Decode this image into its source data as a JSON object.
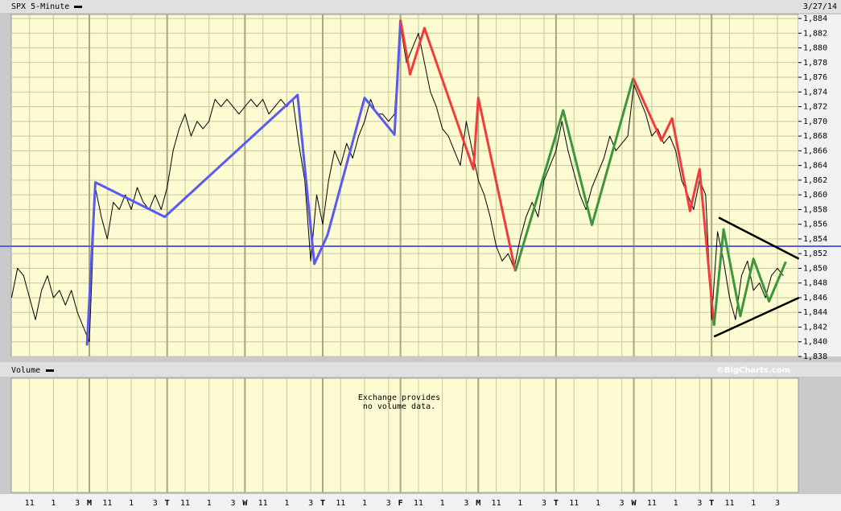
{
  "chart_data": {
    "type": "line",
    "title": "SPX 5-Minute",
    "date": "3/27/14",
    "volume_title": "Volume",
    "credit": "©BigCharts.com",
    "volume_note": [
      "Exchange provides",
      "no volume data."
    ],
    "xlim": [
      0,
      65.75
    ],
    "ylim": [
      1838,
      1884
    ],
    "grid": true,
    "hlines": [
      {
        "value": 1853,
        "color": "#5a5af0"
      }
    ],
    "xticks": [
      {
        "value": 1.5,
        "label": "11"
      },
      {
        "value": 3.5,
        "label": "1"
      },
      {
        "value": 5.5,
        "label": "3"
      },
      {
        "value": 6.5,
        "label": "M"
      },
      {
        "value": 8,
        "label": "11"
      },
      {
        "value": 10,
        "label": "1"
      },
      {
        "value": 12,
        "label": "3"
      },
      {
        "value": 13,
        "label": "T"
      },
      {
        "value": 14.5,
        "label": "11"
      },
      {
        "value": 16.5,
        "label": "1"
      },
      {
        "value": 18.5,
        "label": "3"
      },
      {
        "value": 19.5,
        "label": "W"
      },
      {
        "value": 21,
        "label": "11"
      },
      {
        "value": 23,
        "label": "1"
      },
      {
        "value": 25,
        "label": "3"
      },
      {
        "value": 26,
        "label": "T"
      },
      {
        "value": 27.5,
        "label": "11"
      },
      {
        "value": 29.5,
        "label": "1"
      },
      {
        "value": 31.5,
        "label": "3"
      },
      {
        "value": 32.5,
        "label": "F"
      },
      {
        "value": 34,
        "label": "11"
      },
      {
        "value": 36,
        "label": "1"
      },
      {
        "value": 38,
        "label": "3"
      },
      {
        "value": 39,
        "label": "M"
      },
      {
        "value": 40.5,
        "label": "11"
      },
      {
        "value": 42.5,
        "label": "1"
      },
      {
        "value": 44.5,
        "label": "3"
      },
      {
        "value": 45.5,
        "label": "T"
      },
      {
        "value": 47,
        "label": "11"
      },
      {
        "value": 49,
        "label": "1"
      },
      {
        "value": 51,
        "label": "3"
      },
      {
        "value": 52,
        "label": "W"
      },
      {
        "value": 53.5,
        "label": "11"
      },
      {
        "value": 55.5,
        "label": "1"
      },
      {
        "value": 57.5,
        "label": "3"
      },
      {
        "value": 58.5,
        "label": "T"
      },
      {
        "value": 60,
        "label": "11"
      },
      {
        "value": 62,
        "label": "1"
      },
      {
        "value": 64,
        "label": "3"
      }
    ],
    "yticks": [
      {
        "value": 1838,
        "label": "1,838"
      },
      {
        "value": 1840,
        "label": "1,840"
      },
      {
        "value": 1842,
        "label": "1,842"
      },
      {
        "value": 1844,
        "label": "1,844"
      },
      {
        "value": 1846,
        "label": "1,846"
      },
      {
        "value": 1848,
        "label": "1,848"
      },
      {
        "value": 1850,
        "label": "1,850"
      },
      {
        "value": 1852,
        "label": "1,852"
      },
      {
        "value": 1854,
        "label": "1,854"
      },
      {
        "value": 1856,
        "label": "1,856"
      },
      {
        "value": 1858,
        "label": "1,858"
      },
      {
        "value": 1860,
        "label": "1,860"
      },
      {
        "value": 1862,
        "label": "1,862"
      },
      {
        "value": 1864,
        "label": "1,864"
      },
      {
        "value": 1866,
        "label": "1,866"
      },
      {
        "value": 1868,
        "label": "1,868"
      },
      {
        "value": 1870,
        "label": "1,870"
      },
      {
        "value": 1872,
        "label": "1,872"
      },
      {
        "value": 1874,
        "label": "1,874"
      },
      {
        "value": 1876,
        "label": "1,876"
      },
      {
        "value": 1878,
        "label": "1,878"
      },
      {
        "value": 1880,
        "label": "1,880"
      },
      {
        "value": 1882,
        "label": "1,882"
      },
      {
        "value": 1884,
        "label": "1,884"
      }
    ],
    "series": [
      {
        "name": "SPX 5-Minute",
        "color": "#000000",
        "width": 1,
        "x": [
          0,
          0.5,
          1,
          1.5,
          2,
          2.5,
          3,
          3.5,
          4,
          4.5,
          5,
          5.5,
          6,
          6.5,
          7,
          7.5,
          8,
          8.5,
          9,
          9.5,
          10,
          10.5,
          11,
          11.5,
          12,
          12.5,
          13,
          13.5,
          14,
          14.5,
          15,
          15.5,
          16,
          16.5,
          17,
          17.5,
          18,
          18.5,
          19,
          19.5,
          20,
          20.5,
          21,
          21.5,
          22,
          22.5,
          23,
          23.5,
          24,
          24.5,
          25,
          25.5,
          26,
          26.5,
          27,
          27.5,
          28,
          28.5,
          29,
          29.5,
          30,
          30.5,
          31,
          31.5,
          32,
          32.5,
          33,
          33.5,
          34,
          34.5,
          35,
          35.5,
          36,
          36.5,
          37,
          37.5,
          38,
          38.5,
          39,
          39.5,
          40,
          40.5,
          41,
          41.5,
          42,
          42.5,
          43,
          43.5,
          44,
          44.5,
          45,
          45.5,
          46,
          46.5,
          47,
          47.5,
          48,
          48.5,
          49,
          49.5,
          50,
          50.5,
          51,
          51.5,
          52,
          52.5,
          53,
          53.5,
          54,
          54.5,
          55,
          55.5,
          56,
          56.5,
          57,
          57.5,
          58,
          58.5,
          59,
          59.5,
          60,
          60.5,
          61,
          61.5,
          62,
          62.5,
          63,
          63.5,
          64,
          64.5
        ],
        "values": [
          1846,
          1850,
          1849,
          1846,
          1843,
          1847,
          1849,
          1846,
          1847,
          1845,
          1847,
          1844,
          1842,
          1840,
          1861,
          1857,
          1854,
          1859,
          1858,
          1860,
          1858,
          1861,
          1859,
          1858,
          1860,
          1858,
          1861,
          1866,
          1869,
          1871,
          1868,
          1870,
          1869,
          1870,
          1873,
          1872,
          1873,
          1872,
          1871,
          1872,
          1873,
          1872,
          1873,
          1871,
          1872,
          1873,
          1872,
          1873,
          1867,
          1862,
          1851,
          1860,
          1856,
          1862,
          1866,
          1864,
          1867,
          1865,
          1868,
          1870,
          1873,
          1871,
          1871,
          1870,
          1871,
          1883,
          1878,
          1880,
          1882,
          1878,
          1874,
          1872,
          1869,
          1868,
          1866,
          1864,
          1870,
          1866,
          1862,
          1860,
          1857,
          1853,
          1851,
          1852,
          1850,
          1854,
          1857,
          1859,
          1857,
          1862,
          1864,
          1866,
          1870,
          1866,
          1863,
          1860,
          1858,
          1861,
          1863,
          1865,
          1868,
          1866,
          1867,
          1868,
          1875,
          1873,
          1871,
          1868,
          1869,
          1867,
          1868,
          1866,
          1862,
          1860,
          1858,
          1862,
          1860,
          1843,
          1855,
          1851,
          1846,
          1843,
          1849,
          1851,
          1847,
          1848,
          1846,
          1849,
          1850,
          1849
        ]
      },
      {
        "color": "#5a5af0",
        "width": 3,
        "x": [
          6.3,
          7,
          12.8,
          23.9,
          25.3,
          26.4,
          29.5,
          32,
          32.5
        ],
        "values": [
          1839.5,
          1861.7,
          1857,
          1873.6,
          1850.6,
          1854.5,
          1873.2,
          1868.2,
          1883.8
        ]
      },
      {
        "color": "#f23c3c",
        "width": 3,
        "x": [
          32.5,
          33.3,
          34.5,
          38.6,
          39,
          42.1
        ],
        "values": [
          1883.8,
          1876.4,
          1882.7,
          1863.5,
          1873.2,
          1849.6
        ]
      },
      {
        "color": "#3c963c",
        "width": 3,
        "x": [
          42.1,
          46.1,
          48.5,
          51.95
        ],
        "values": [
          1849.6,
          1871.5,
          1855.9,
          1875.9
        ]
      },
      {
        "color": "#f23c3c",
        "width": 3,
        "x": [
          51.95,
          54.3,
          55.2,
          56.7,
          57.5,
          58.7
        ],
        "values": [
          1875.9,
          1867.4,
          1870.4,
          1857.8,
          1863.5,
          1842.2
        ]
      },
      {
        "color": "#3c963c",
        "width": 3,
        "x": [
          58.7,
          59.5,
          60.9,
          62,
          63.3,
          64.7
        ],
        "values": [
          1842.2,
          1855.3,
          1843.5,
          1851.3,
          1845.5,
          1850.9
        ]
      },
      {
        "color": "#000000",
        "width": 2.5,
        "x": [
          59.1,
          65.8
        ],
        "values": [
          1856.9,
          1851.3
        ]
      },
      {
        "color": "#000000",
        "width": 2.5,
        "x": [
          58.7,
          65.8
        ],
        "values": [
          1840.7,
          1846
        ]
      }
    ]
  }
}
